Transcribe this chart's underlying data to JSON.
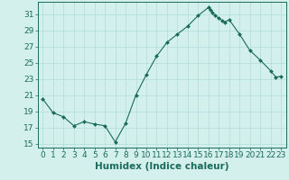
{
  "x": [
    0,
    1,
    2,
    3,
    4,
    5,
    6,
    7,
    8,
    9,
    10,
    11,
    12,
    13,
    14,
    15,
    16,
    16.2,
    16.4,
    16.6,
    17,
    17.3,
    17.6,
    18,
    19,
    20,
    21,
    22,
    22.5,
    23
  ],
  "y": [
    20.5,
    18.8,
    18.3,
    17.2,
    17.7,
    17.4,
    17.2,
    15.2,
    17.5,
    21.0,
    23.5,
    25.8,
    27.5,
    28.5,
    29.5,
    30.8,
    31.8,
    31.5,
    31.2,
    30.8,
    30.5,
    30.2,
    30.0,
    30.3,
    28.5,
    26.5,
    25.3,
    24.0,
    23.2,
    23.3
  ],
  "xlabel": "Humidex (Indice chaleur)",
  "ylabel": "",
  "xlim": [
    -0.5,
    23.5
  ],
  "ylim": [
    14.5,
    32.5
  ],
  "yticks": [
    15,
    17,
    19,
    21,
    23,
    25,
    27,
    29,
    31
  ],
  "xticks": [
    0,
    1,
    2,
    3,
    4,
    5,
    6,
    7,
    8,
    9,
    10,
    11,
    12,
    13,
    14,
    15,
    16,
    17,
    18,
    19,
    20,
    21,
    22,
    23
  ],
  "line_color": "#1a6b5a",
  "marker_color": "#1a6b5a",
  "bg_color": "#d4f0ec",
  "grid_color": "#b0ddd8",
  "axis_color": "#1a6b5a",
  "font_size": 6.5,
  "xlabel_font_size": 7.5
}
